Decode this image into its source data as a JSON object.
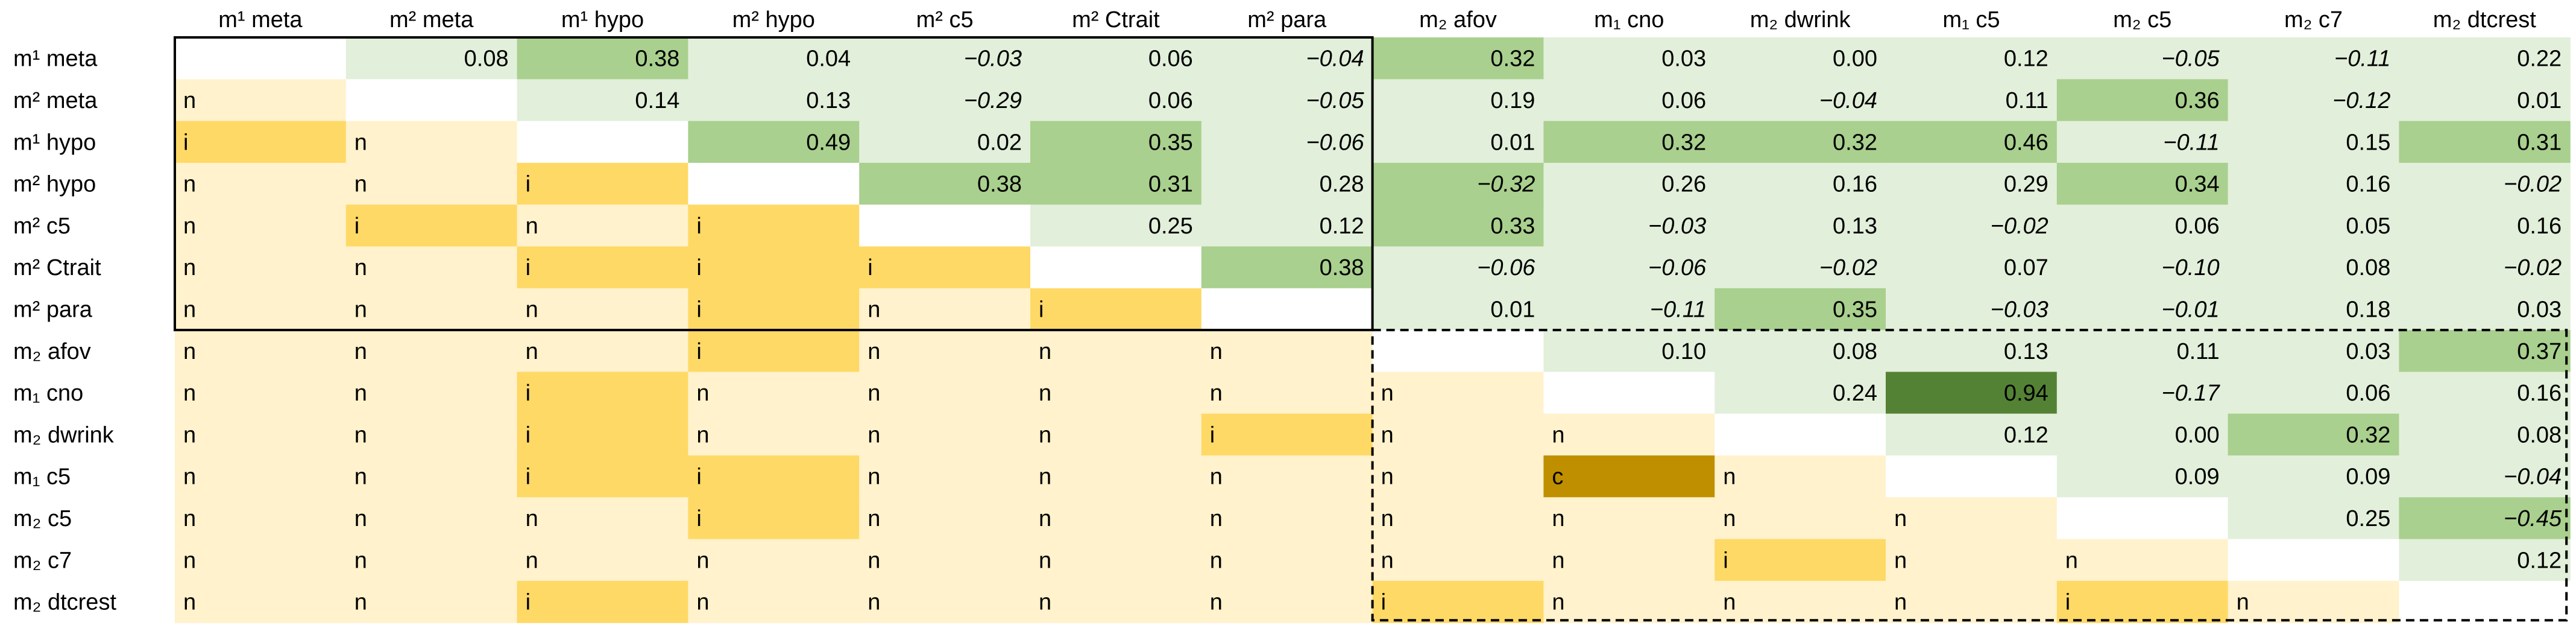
{
  "chart_data": {
    "type": "heatmap",
    "title": "",
    "columns": [
      "m¹ meta",
      "m² meta",
      "m¹ hypo",
      "m² hypo",
      "m² c5",
      "m² Ctrait",
      "m² para",
      "m₂ afov",
      "m₁ cno",
      "m₂ dwrink",
      "m₁ c5",
      "m₂ c5",
      "m₂ c7",
      "m₂ dtcrest"
    ],
    "rows": [
      "m¹ meta",
      "m² meta",
      "m¹ hypo",
      "m² hypo",
      "m² c5",
      "m² Ctrait",
      "m² para",
      "m₂ afov",
      "m₁ cno",
      "m₂ dwrink",
      "m₁ c5",
      "m₂ c5",
      "m₂ c7",
      "m₂ dtcrest"
    ],
    "cells": [
      [
        "",
        "0.08",
        "0.38",
        "0.04",
        "−0.03",
        "0.06",
        "−0.04",
        "0.32",
        "0.03",
        "0.00",
        "0.12",
        "−0.05",
        "−0.11",
        "0.22"
      ],
      [
        "n",
        "",
        "0.14",
        "0.13",
        "−0.29",
        "0.06",
        "−0.05",
        "0.19",
        "0.06",
        "−0.04",
        "0.11",
        "0.36",
        "−0.12",
        "0.01"
      ],
      [
        "i",
        "n",
        "",
        "0.49",
        "0.02",
        "0.35",
        "−0.06",
        "0.01",
        "0.32",
        "0.32",
        "0.46",
        "−0.11",
        "0.15",
        "0.31"
      ],
      [
        "n",
        "n",
        "i",
        "",
        "0.38",
        "0.31",
        "0.28",
        "−0.32",
        "0.26",
        "0.16",
        "0.29",
        "0.34",
        "0.16",
        "−0.02"
      ],
      [
        "n",
        "i",
        "n",
        "i",
        "",
        "0.25",
        "0.12",
        "0.33",
        "−0.03",
        "0.13",
        "−0.02",
        "0.06",
        "0.05",
        "0.16"
      ],
      [
        "n",
        "n",
        "i",
        "i",
        "i",
        "",
        "0.38",
        "−0.06",
        "−0.06",
        "−0.02",
        "0.07",
        "−0.10",
        "0.08",
        "−0.02"
      ],
      [
        "n",
        "n",
        "n",
        "i",
        "n",
        "i",
        "",
        "0.01",
        "−0.11",
        "0.35",
        "−0.03",
        "−0.01",
        "0.18",
        "0.03"
      ],
      [
        "n",
        "n",
        "n",
        "i",
        "n",
        "n",
        "n",
        "",
        "0.10",
        "0.08",
        "0.13",
        "0.11",
        "0.03",
        "0.37"
      ],
      [
        "n",
        "n",
        "i",
        "n",
        "n",
        "n",
        "n",
        "n",
        "",
        "0.24",
        "0.94",
        "−0.17",
        "0.06",
        "0.16"
      ],
      [
        "n",
        "n",
        "i",
        "n",
        "n",
        "n",
        "i",
        "n",
        "n",
        "",
        "0.12",
        "0.00",
        "0.32",
        "0.08"
      ],
      [
        "n",
        "n",
        "i",
        "i",
        "n",
        "n",
        "n",
        "n",
        "c",
        "n",
        "",
        "0.09",
        "0.09",
        "−0.04"
      ],
      [
        "n",
        "n",
        "n",
        "i",
        "n",
        "n",
        "n",
        "n",
        "n",
        "n",
        "n",
        "",
        "0.25",
        "−0.45"
      ],
      [
        "n",
        "n",
        "n",
        "n",
        "n",
        "n",
        "n",
        "n",
        "n",
        "i",
        "n",
        "n",
        "",
        "0.12"
      ],
      [
        "n",
        "n",
        "i",
        "n",
        "n",
        "n",
        "n",
        "i",
        "n",
        "n",
        "n",
        "i",
        "n",
        ""
      ]
    ],
    "upper_triangle": "correlation values (italic = negative)",
    "lower_triangle": "test codes: n, i, c",
    "solid_box": "m¹ meta – m² para",
    "dashed_box": "m₂ afov – m₂ dtcrest",
    "colors": {
      "green_light": "#e2efda",
      "green_mid": "#a9d08e",
      "green_dark": "#548235",
      "yellow_light": "#fff2cc",
      "yellow_mid": "#ffd966",
      "yellow_dark": "#bf8f00",
      "diagonal": "#ffffff"
    }
  }
}
